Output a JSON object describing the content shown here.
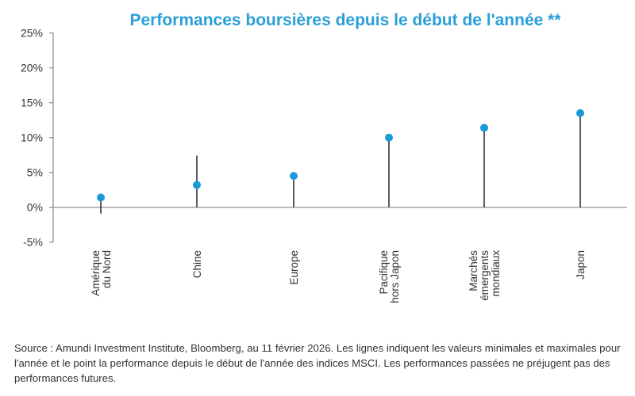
{
  "chart_data": {
    "type": "scatter",
    "title": "Performances boursières depuis le début de l'année **",
    "categories": [
      "Amérique du Nord",
      "Chine",
      "Europe",
      "Pacifique hors Japon",
      "Marchés émergents mondiaux",
      "Japon"
    ],
    "category_lines": [
      [
        "Amérique",
        "du Nord"
      ],
      [
        "Chine"
      ],
      [
        "Europe"
      ],
      [
        "Pacifique",
        "hors Japon"
      ],
      [
        "Marchés",
        "émergents",
        "mondiaux"
      ],
      [
        "Japon"
      ]
    ],
    "values": [
      1.4,
      3.2,
      4.5,
      10.0,
      11.4,
      13.5
    ],
    "min": [
      -0.9,
      0,
      0,
      0,
      0,
      0
    ],
    "max": [
      1.8,
      7.4,
      4.5,
      10.0,
      11.4,
      13.5
    ],
    "ylim": [
      -5,
      25
    ],
    "yticks": [
      -5,
      0,
      5,
      10,
      15,
      20,
      25
    ],
    "ytick_labels": [
      "-5%",
      "0%",
      "5%",
      "10%",
      "15%",
      "20%",
      "25%"
    ],
    "grid": false,
    "colors": {
      "dot": "#1b9ad6",
      "line": "#1f2633",
      "title": "#2b9fd8"
    }
  },
  "source": "Source : Amundi Investment Institute, Bloomberg, au 11 février 2026. Les lignes indiquent les valeurs minimales et maximales pour l'année et le point la performance depuis le début de l'année des indices MSCI. Les performances passées ne préjugent pas des performances futures."
}
